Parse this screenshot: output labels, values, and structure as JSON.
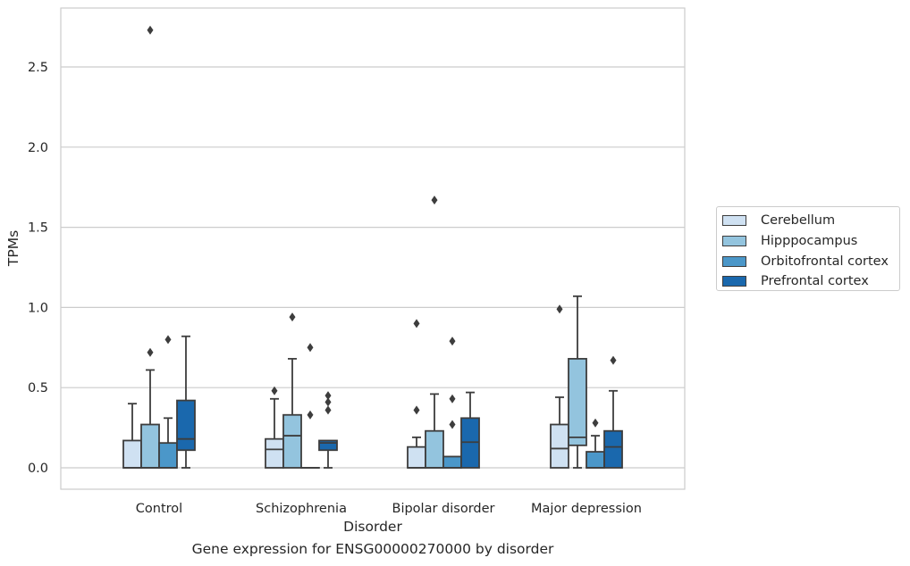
{
  "chart_data": {
    "type": "box",
    "title": "",
    "caption": "Gene expression for ENSG00000270000 by disorder",
    "xlabel": "Disorder",
    "ylabel": "TPMs",
    "ylim": [
      -0.13,
      2.87
    ],
    "yticks": [
      0.0,
      0.5,
      1.0,
      1.5,
      2.0,
      2.5
    ],
    "ytick_labels": [
      "0.0",
      "0.5",
      "1.0",
      "1.5",
      "2.0",
      "2.5"
    ],
    "grid": "y",
    "legend_position": "right",
    "categories": [
      "Control",
      "Schizophrenia",
      "Bipolar disorder",
      "Major depression"
    ],
    "series": [
      {
        "name": "Cerebellum",
        "color": "#cfe1f2",
        "boxes": [
          {
            "min": 0.0,
            "q1": 0.0,
            "median": 0.0,
            "q3": 0.17,
            "max": 0.4,
            "outliers": []
          },
          {
            "min": 0.0,
            "q1": 0.0,
            "median": 0.115,
            "q3": 0.18,
            "max": 0.43,
            "outliers": [
              0.48
            ]
          },
          {
            "min": 0.0,
            "q1": 0.0,
            "median": 0.0,
            "q3": 0.13,
            "max": 0.19,
            "outliers": [
              0.36,
              0.9
            ]
          },
          {
            "min": 0.0,
            "q1": 0.0,
            "median": 0.12,
            "q3": 0.27,
            "max": 0.44,
            "outliers": [
              0.99
            ]
          }
        ]
      },
      {
        "name": "Hipppocampus",
        "color": "#93c4de",
        "boxes": [
          {
            "min": 0.0,
            "q1": 0.0,
            "median": 0.0,
            "q3": 0.27,
            "max": 0.61,
            "outliers": [
              0.72,
              2.73
            ]
          },
          {
            "min": 0.0,
            "q1": 0.0,
            "median": 0.2,
            "q3": 0.33,
            "max": 0.68,
            "outliers": [
              0.94
            ]
          },
          {
            "min": 0.0,
            "q1": 0.0,
            "median": 0.0,
            "q3": 0.23,
            "max": 0.46,
            "outliers": [
              1.67
            ]
          },
          {
            "min": 0.0,
            "q1": 0.14,
            "median": 0.19,
            "q3": 0.68,
            "max": 1.07,
            "outliers": []
          }
        ]
      },
      {
        "name": "Orbitofrontal cortex",
        "color": "#4b97c9",
        "boxes": [
          {
            "min": 0.0,
            "q1": 0.0,
            "median": 0.0,
            "q3": 0.155,
            "max": 0.31,
            "outliers": [
              0.8
            ]
          },
          {
            "min": 0.0,
            "q1": 0.0,
            "median": 0.0,
            "q3": 0.0,
            "max": 0.0,
            "outliers": [
              0.33,
              0.75
            ]
          },
          {
            "min": 0.0,
            "q1": 0.0,
            "median": 0.0,
            "q3": 0.07,
            "max": 0.07,
            "outliers": [
              0.27,
              0.43,
              0.79
            ]
          },
          {
            "min": 0.0,
            "q1": 0.0,
            "median": 0.0,
            "q3": 0.1,
            "max": 0.2,
            "outliers": [
              0.28
            ]
          }
        ]
      },
      {
        "name": "Prefrontal cortex",
        "color": "#1a68ad",
        "boxes": [
          {
            "min": 0.0,
            "q1": 0.11,
            "median": 0.18,
            "q3": 0.42,
            "max": 0.82,
            "outliers": []
          },
          {
            "min": 0.0,
            "q1": 0.11,
            "median": 0.155,
            "q3": 0.17,
            "max": 0.17,
            "outliers": [
              0.36,
              0.41,
              0.45
            ]
          },
          {
            "min": 0.0,
            "q1": 0.0,
            "median": 0.16,
            "q3": 0.31,
            "max": 0.47,
            "outliers": []
          },
          {
            "min": 0.0,
            "q1": 0.0,
            "median": 0.13,
            "q3": 0.23,
            "max": 0.48,
            "outliers": [
              0.67
            ]
          }
        ]
      }
    ]
  }
}
